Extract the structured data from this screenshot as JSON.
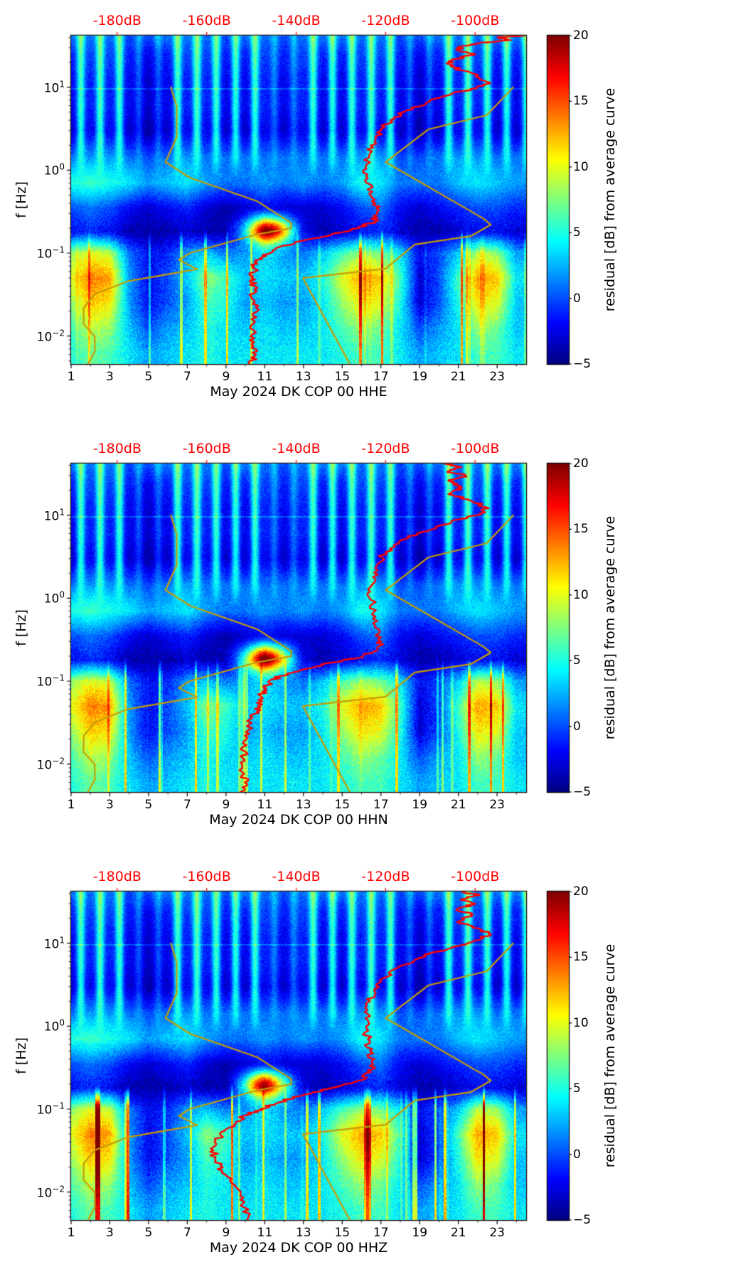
{
  "shared": {
    "ylabel": "f [Hz]",
    "x_ticks": [
      1,
      3,
      5,
      7,
      9,
      11,
      13,
      15,
      17,
      19,
      21,
      23
    ],
    "x_minor_ticks": [
      2,
      4,
      6,
      8,
      10,
      12,
      14,
      16,
      18,
      20,
      22,
      24
    ],
    "y_tick_exponents": [
      1,
      0,
      -1,
      -2
    ],
    "x_range_days": [
      1,
      24.5
    ],
    "f_range_hz": [
      0.0046,
      42
    ],
    "db_range": [
      -190.3,
      -88.6
    ],
    "top_axis": {
      "color": "#ff0000",
      "ticks_db": [
        -180,
        -160,
        -140,
        -120,
        -100
      ],
      "labels": [
        "-180dB",
        "-160dB",
        "-140dB",
        "-120dB",
        "-100dB"
      ]
    },
    "colorbar": {
      "label": "residual [dB] from average curve",
      "range": [
        -5,
        20
      ],
      "ticks": [
        20,
        15,
        10,
        5,
        0,
        -5
      ],
      "tick_labels": [
        "20",
        "15",
        "10",
        "5",
        "0",
        "−5"
      ],
      "colormap": "jet"
    },
    "colors": {
      "average_psd_curve": "#ff0000",
      "noise_model_curves": "#c69c06",
      "axes": "#000000"
    },
    "hline": {
      "f_hz": 9.5,
      "amp_db": 2.0
    },
    "curves": {
      "nlnm_db_vs_hz": [
        [
          10,
          -168
        ],
        [
          5.9,
          -166.7
        ],
        [
          2.5,
          -166.7
        ],
        [
          1.25,
          -169.2
        ],
        [
          0.81,
          -163.7
        ],
        [
          0.42,
          -148.6
        ],
        [
          0.23,
          -141.1
        ],
        [
          0.2,
          -141.1
        ],
        [
          0.167,
          -149
        ],
        [
          0.1,
          -163.8
        ],
        [
          0.083,
          -166.2
        ],
        [
          0.064,
          -162.1
        ],
        [
          0.046,
          -177.5
        ],
        [
          0.032,
          -185
        ],
        [
          0.022,
          -187.5
        ],
        [
          0.014,
          -187.5
        ],
        [
          0.0099,
          -185
        ],
        [
          0.0065,
          -185
        ],
        [
          0.0046,
          -186.5
        ]
      ],
      "nhnm_db_vs_hz": [
        [
          10,
          -91.5
        ],
        [
          4.6,
          -97.4
        ],
        [
          3.1,
          -110.5
        ],
        [
          1.25,
          -120
        ],
        [
          0.26,
          -98.1
        ],
        [
          0.22,
          -96.5
        ],
        [
          0.16,
          -101
        ],
        [
          0.127,
          -113.5
        ],
        [
          0.065,
          -120
        ],
        [
          0.05,
          -138.5
        ],
        [
          0.0046,
          -128
        ]
      ]
    }
  },
  "shared_spectrogram_grid": {
    "days": [
      1,
      2,
      3,
      4,
      5,
      6,
      7,
      8,
      9,
      10,
      11,
      12,
      13,
      14,
      15,
      16,
      17,
      18,
      19,
      20,
      21,
      22,
      23,
      24
    ],
    "freqs_hz": [
      0.006,
      0.012,
      0.025,
      0.05,
      0.1,
      0.18,
      0.35,
      0.7,
      1.4,
      3,
      6,
      12,
      25,
      40
    ],
    "residual_db": [
      [
        5,
        7,
        6,
        4,
        2,
        3,
        4,
        5,
        4,
        4,
        4,
        4,
        4,
        4,
        5,
        6,
        6,
        4,
        2,
        3,
        4,
        6,
        6,
        4
      ],
      [
        6,
        9,
        8,
        3,
        0,
        2,
        3,
        5,
        4,
        3,
        4,
        3,
        3,
        4,
        6,
        8,
        7,
        4,
        0,
        2,
        4,
        8,
        7,
        3
      ],
      [
        8,
        12,
        11,
        2,
        -2,
        0,
        2,
        6,
        5,
        2,
        3,
        2,
        2,
        4,
        8,
        11,
        10,
        5,
        -3,
        0,
        5,
        11,
        10,
        3
      ],
      [
        10,
        14,
        13,
        2,
        -2,
        0,
        3,
        8,
        6,
        3,
        4,
        3,
        3,
        5,
        10,
        13,
        12,
        6,
        -3,
        0,
        6,
        13,
        12,
        4
      ],
      [
        8,
        10,
        9,
        1,
        -2,
        -1,
        2,
        3,
        1,
        2,
        4,
        2,
        1,
        3,
        6,
        8,
        7,
        4,
        -2,
        0,
        3,
        9,
        8,
        2
      ],
      [
        -2,
        -1,
        -2,
        -4,
        -4,
        -4,
        -3,
        -4,
        -4,
        0,
        8,
        4,
        -3,
        -4,
        -3,
        -2,
        -1,
        -3,
        -4,
        -4,
        -3,
        -2,
        -2,
        -3
      ],
      [
        0,
        1,
        0,
        -2,
        -3,
        -2,
        -1,
        -3,
        -4,
        -3,
        -2,
        -3,
        -3,
        -3,
        -2,
        0,
        1,
        -2,
        -3,
        -2,
        -1,
        0,
        0,
        -1
      ],
      [
        5,
        6,
        5,
        4,
        2,
        3,
        4,
        2,
        1,
        1,
        2,
        1,
        2,
        1,
        2,
        5,
        4,
        1,
        1,
        1,
        3,
        4,
        3,
        2
      ],
      [
        2,
        3,
        3,
        2,
        1,
        2,
        3,
        2,
        2,
        2,
        2,
        2,
        2,
        2,
        2,
        3,
        3,
        1,
        1,
        2,
        3,
        3,
        2,
        2
      ],
      [
        -1,
        0,
        0,
        -1,
        -2,
        -1,
        0,
        0,
        -1,
        -1,
        0,
        -1,
        0,
        -1,
        -1,
        0,
        0,
        -1,
        -2,
        -1,
        0,
        0,
        -1,
        -1
      ],
      [
        0,
        1,
        1,
        0,
        -1,
        0,
        1,
        1,
        0,
        0,
        1,
        0,
        1,
        0,
        0,
        1,
        1,
        0,
        -1,
        0,
        1,
        1,
        0,
        0
      ],
      [
        0,
        1,
        1,
        0,
        -1,
        0,
        1,
        1,
        0,
        0,
        1,
        0,
        1,
        0,
        0,
        1,
        1,
        0,
        -1,
        0,
        1,
        1,
        0,
        0
      ],
      [
        1,
        2,
        2,
        1,
        0,
        1,
        2,
        2,
        1,
        1,
        2,
        1,
        2,
        1,
        1,
        2,
        2,
        1,
        0,
        1,
        2,
        2,
        1,
        1
      ],
      [
        3,
        3,
        3,
        2,
        2,
        3,
        3,
        3,
        2,
        3,
        3,
        2,
        3,
        3,
        3,
        3,
        3,
        2,
        2,
        3,
        3,
        3,
        3,
        3
      ]
    ]
  },
  "chart_data": [
    {
      "type": "heatmap",
      "channel": "HHE",
      "xlabel": "May 2024 DK COP 00 HHE",
      "seed": 1,
      "spike_gain": 1.0,
      "blob": {
        "day": 11.2,
        "f_hz": 0.19,
        "amp_db": 14,
        "sd_day": 0.8,
        "sd_logf": 0.1
      },
      "grid_ref": "shared_spectrogram_grid",
      "curves": {
        "average_psd_db_vs_hz": [
          [
            42,
            -89
          ],
          [
            40,
            -95
          ],
          [
            37,
            -92
          ],
          [
            34,
            -99
          ],
          [
            31,
            -103
          ],
          [
            28,
            -104
          ],
          [
            25,
            -100
          ],
          [
            22,
            -104
          ],
          [
            19,
            -106
          ],
          [
            16,
            -103
          ],
          [
            13,
            -99
          ],
          [
            11,
            -97
          ],
          [
            9.5,
            -101
          ],
          [
            8,
            -106
          ],
          [
            6.5,
            -111
          ],
          [
            5,
            -116
          ],
          [
            4,
            -119
          ],
          [
            3,
            -121
          ],
          [
            2.2,
            -122.5
          ],
          [
            1.6,
            -123.5
          ],
          [
            1.1,
            -124.5
          ],
          [
            0.8,
            -124
          ],
          [
            0.55,
            -123
          ],
          [
            0.4,
            -122.3
          ],
          [
            0.3,
            -121.8
          ],
          [
            0.24,
            -122.5
          ],
          [
            0.2,
            -126
          ],
          [
            0.17,
            -132
          ],
          [
            0.14,
            -139
          ],
          [
            0.115,
            -144.5
          ],
          [
            0.095,
            -147.5
          ],
          [
            0.08,
            -148.8
          ],
          [
            0.065,
            -149.3
          ],
          [
            0.05,
            -150
          ],
          [
            0.04,
            -149.3
          ],
          [
            0.03,
            -150
          ],
          [
            0.022,
            -149
          ],
          [
            0.016,
            -150
          ],
          [
            0.011,
            -149
          ],
          [
            0.008,
            -150
          ],
          [
            0.006,
            -149
          ],
          [
            0.0046,
            -150.5
          ]
        ]
      }
    },
    {
      "type": "heatmap",
      "channel": "HHN",
      "xlabel": "May 2024 DK COP 00 HHN",
      "seed": 2,
      "spike_gain": 1.0,
      "blob": {
        "day": 11.0,
        "f_hz": 0.19,
        "amp_db": 14,
        "sd_day": 0.8,
        "sd_logf": 0.1
      },
      "grid_ref": "shared_spectrogram_grid",
      "curves": {
        "average_psd_db_vs_hz": [
          [
            42,
            -107
          ],
          [
            38,
            -103
          ],
          [
            34,
            -106
          ],
          [
            30,
            -102
          ],
          [
            26,
            -106
          ],
          [
            22,
            -103
          ],
          [
            18,
            -106
          ],
          [
            15,
            -101
          ],
          [
            12.5,
            -97.5
          ],
          [
            10.5,
            -99
          ],
          [
            9,
            -103
          ],
          [
            7.5,
            -108
          ],
          [
            6,
            -113
          ],
          [
            4.8,
            -117
          ],
          [
            3.6,
            -120
          ],
          [
            2.6,
            -121.8
          ],
          [
            1.8,
            -122.8
          ],
          [
            1.2,
            -123.5
          ],
          [
            0.85,
            -123
          ],
          [
            0.6,
            -122.3
          ],
          [
            0.42,
            -121.5
          ],
          [
            0.3,
            -121
          ],
          [
            0.24,
            -121.8
          ],
          [
            0.2,
            -125
          ],
          [
            0.17,
            -131
          ],
          [
            0.14,
            -138
          ],
          [
            0.115,
            -143.5
          ],
          [
            0.095,
            -146
          ],
          [
            0.08,
            -147.2
          ],
          [
            0.065,
            -147.8
          ],
          [
            0.05,
            -148.5
          ],
          [
            0.04,
            -149.5
          ],
          [
            0.03,
            -150.5
          ],
          [
            0.022,
            -151.5
          ],
          [
            0.016,
            -152
          ],
          [
            0.011,
            -151.5
          ],
          [
            0.008,
            -152
          ],
          [
            0.006,
            -151.5
          ],
          [
            0.0046,
            -152.5
          ]
        ]
      }
    },
    {
      "type": "heatmap",
      "channel": "HHZ",
      "xlabel": "May 2024 DK COP 00 HHZ",
      "seed": 3,
      "spike_gain": 1.5,
      "blob": {
        "day": 10.9,
        "f_hz": 0.2,
        "amp_db": 13,
        "sd_day": 0.75,
        "sd_logf": 0.1
      },
      "grid_ref": "shared_spectrogram_grid",
      "curves": {
        "average_psd_db_vs_hz": [
          [
            42,
            -103
          ],
          [
            38,
            -99
          ],
          [
            34,
            -103
          ],
          [
            30,
            -100
          ],
          [
            26,
            -104
          ],
          [
            22,
            -101
          ],
          [
            18,
            -104
          ],
          [
            15,
            -99
          ],
          [
            13,
            -97
          ],
          [
            11,
            -99
          ],
          [
            9.5,
            -103
          ],
          [
            8,
            -108
          ],
          [
            6.5,
            -113
          ],
          [
            5,
            -117.5
          ],
          [
            3.8,
            -120.5
          ],
          [
            2.8,
            -122.5
          ],
          [
            2,
            -123.5
          ],
          [
            1.4,
            -124
          ],
          [
            1,
            -124.3
          ],
          [
            0.7,
            -124
          ],
          [
            0.5,
            -123.5
          ],
          [
            0.36,
            -123
          ],
          [
            0.28,
            -123.3
          ],
          [
            0.22,
            -126
          ],
          [
            0.18,
            -132
          ],
          [
            0.15,
            -138
          ],
          [
            0.12,
            -144
          ],
          [
            0.1,
            -148
          ],
          [
            0.085,
            -151
          ],
          [
            0.07,
            -153.5
          ],
          [
            0.055,
            -156
          ],
          [
            0.042,
            -158
          ],
          [
            0.032,
            -158.5
          ],
          [
            0.024,
            -158
          ],
          [
            0.018,
            -156.5
          ],
          [
            0.013,
            -154.5
          ],
          [
            0.009,
            -152.5
          ],
          [
            0.0065,
            -151.5
          ],
          [
            0.0046,
            -151
          ]
        ]
      }
    }
  ]
}
